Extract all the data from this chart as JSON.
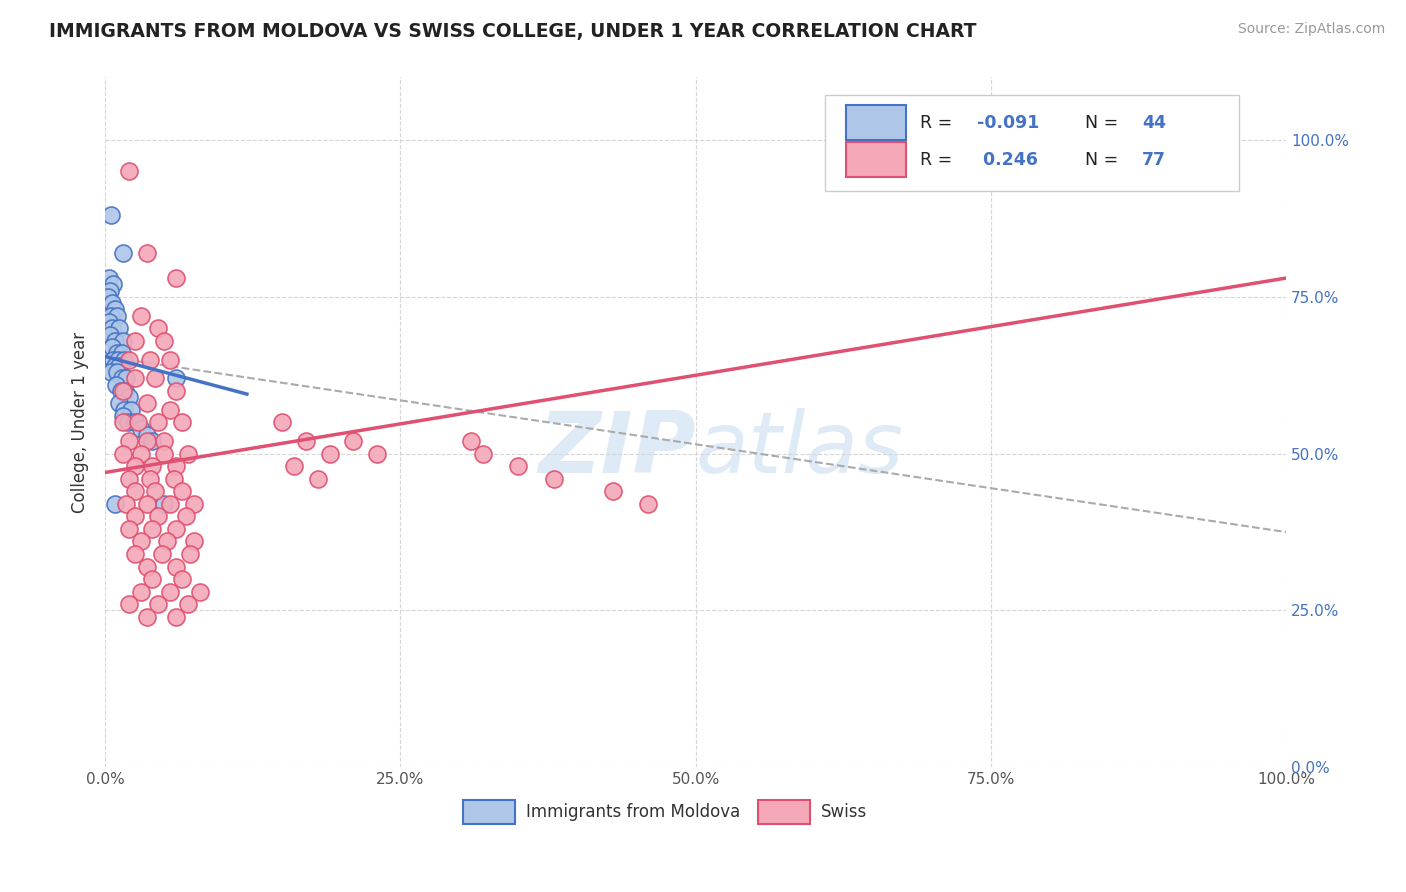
{
  "title": "IMMIGRANTS FROM MOLDOVA VS SWISS COLLEGE, UNDER 1 YEAR CORRELATION CHART",
  "source": "Source: ZipAtlas.com",
  "ylabel": "College, Under 1 year",
  "legend_entries": [
    "Immigrants from Moldova",
    "Swiss"
  ],
  "r_blue": -0.091,
  "r_pink": 0.246,
  "n_blue": 44,
  "n_pink": 77,
  "dot_color_blue": "#aec6e8",
  "dot_color_pink": "#f4a8b8",
  "line_color_blue": "#4472c4",
  "line_color_pink": "#e05070",
  "dash_color": "#aaaaaa",
  "watermark_color": "#c8ddf0",
  "right_axis_color": "#4472c4",
  "background_color": "#ffffff",
  "grid_color": "#cccccc",
  "xlim": [
    0.0,
    1.0
  ],
  "ylim": [
    0.0,
    1.1
  ],
  "yticks": [
    0.0,
    0.25,
    0.5,
    0.75,
    1.0
  ],
  "xticks": [
    0.0,
    0.25,
    0.5,
    0.75,
    1.0
  ],
  "ytick_labels_right": [
    "0.0%",
    "25.0%",
    "50.0%",
    "75.0%",
    "100.0%"
  ],
  "xtick_labels": [
    "0.0%",
    "25.0%",
    "50.0%",
    "75.0%",
    "100.0%"
  ],
  "blue_points": [
    [
      0.005,
      0.88
    ],
    [
      0.015,
      0.82
    ],
    [
      0.003,
      0.78
    ],
    [
      0.007,
      0.77
    ],
    [
      0.004,
      0.76
    ],
    [
      0.002,
      0.75
    ],
    [
      0.006,
      0.74
    ],
    [
      0.008,
      0.73
    ],
    [
      0.005,
      0.72
    ],
    [
      0.01,
      0.72
    ],
    [
      0.003,
      0.71
    ],
    [
      0.006,
      0.7
    ],
    [
      0.012,
      0.7
    ],
    [
      0.004,
      0.69
    ],
    [
      0.008,
      0.68
    ],
    [
      0.015,
      0.68
    ],
    [
      0.006,
      0.67
    ],
    [
      0.01,
      0.66
    ],
    [
      0.014,
      0.66
    ],
    [
      0.007,
      0.65
    ],
    [
      0.011,
      0.65
    ],
    [
      0.016,
      0.65
    ],
    [
      0.008,
      0.64
    ],
    [
      0.012,
      0.64
    ],
    [
      0.005,
      0.63
    ],
    [
      0.01,
      0.63
    ],
    [
      0.014,
      0.62
    ],
    [
      0.018,
      0.62
    ],
    [
      0.009,
      0.61
    ],
    [
      0.013,
      0.6
    ],
    [
      0.017,
      0.6
    ],
    [
      0.02,
      0.59
    ],
    [
      0.012,
      0.58
    ],
    [
      0.016,
      0.57
    ],
    [
      0.022,
      0.57
    ],
    [
      0.015,
      0.56
    ],
    [
      0.019,
      0.55
    ],
    [
      0.025,
      0.55
    ],
    [
      0.03,
      0.54
    ],
    [
      0.035,
      0.53
    ],
    [
      0.04,
      0.52
    ],
    [
      0.05,
      0.42
    ],
    [
      0.008,
      0.42
    ],
    [
      0.06,
      0.62
    ]
  ],
  "pink_points": [
    [
      0.02,
      0.95
    ],
    [
      0.035,
      0.82
    ],
    [
      0.06,
      0.78
    ],
    [
      0.03,
      0.72
    ],
    [
      0.045,
      0.7
    ],
    [
      0.025,
      0.68
    ],
    [
      0.05,
      0.68
    ],
    [
      0.02,
      0.65
    ],
    [
      0.038,
      0.65
    ],
    [
      0.055,
      0.65
    ],
    [
      0.025,
      0.62
    ],
    [
      0.042,
      0.62
    ],
    [
      0.06,
      0.6
    ],
    [
      0.015,
      0.6
    ],
    [
      0.035,
      0.58
    ],
    [
      0.055,
      0.57
    ],
    [
      0.015,
      0.55
    ],
    [
      0.028,
      0.55
    ],
    [
      0.045,
      0.55
    ],
    [
      0.065,
      0.55
    ],
    [
      0.02,
      0.52
    ],
    [
      0.035,
      0.52
    ],
    [
      0.05,
      0.52
    ],
    [
      0.015,
      0.5
    ],
    [
      0.03,
      0.5
    ],
    [
      0.05,
      0.5
    ],
    [
      0.07,
      0.5
    ],
    [
      0.025,
      0.48
    ],
    [
      0.04,
      0.48
    ],
    [
      0.06,
      0.48
    ],
    [
      0.02,
      0.46
    ],
    [
      0.038,
      0.46
    ],
    [
      0.058,
      0.46
    ],
    [
      0.025,
      0.44
    ],
    [
      0.042,
      0.44
    ],
    [
      0.065,
      0.44
    ],
    [
      0.018,
      0.42
    ],
    [
      0.035,
      0.42
    ],
    [
      0.055,
      0.42
    ],
    [
      0.075,
      0.42
    ],
    [
      0.025,
      0.4
    ],
    [
      0.045,
      0.4
    ],
    [
      0.068,
      0.4
    ],
    [
      0.02,
      0.38
    ],
    [
      0.04,
      0.38
    ],
    [
      0.06,
      0.38
    ],
    [
      0.03,
      0.36
    ],
    [
      0.052,
      0.36
    ],
    [
      0.075,
      0.36
    ],
    [
      0.025,
      0.34
    ],
    [
      0.048,
      0.34
    ],
    [
      0.072,
      0.34
    ],
    [
      0.035,
      0.32
    ],
    [
      0.06,
      0.32
    ],
    [
      0.04,
      0.3
    ],
    [
      0.065,
      0.3
    ],
    [
      0.03,
      0.28
    ],
    [
      0.055,
      0.28
    ],
    [
      0.08,
      0.28
    ],
    [
      0.02,
      0.26
    ],
    [
      0.045,
      0.26
    ],
    [
      0.07,
      0.26
    ],
    [
      0.035,
      0.24
    ],
    [
      0.06,
      0.24
    ],
    [
      0.15,
      0.55
    ],
    [
      0.17,
      0.52
    ],
    [
      0.19,
      0.5
    ],
    [
      0.16,
      0.48
    ],
    [
      0.18,
      0.46
    ],
    [
      0.21,
      0.52
    ],
    [
      0.23,
      0.5
    ],
    [
      0.31,
      0.52
    ],
    [
      0.32,
      0.5
    ],
    [
      0.35,
      0.48
    ],
    [
      0.38,
      0.46
    ],
    [
      0.43,
      0.44
    ],
    [
      0.46,
      0.42
    ]
  ],
  "blue_line_x": [
    0.0,
    0.12
  ],
  "blue_line_y": [
    0.655,
    0.595
  ],
  "pink_line_x": [
    0.0,
    1.0
  ],
  "pink_line_y": [
    0.47,
    0.78
  ],
  "dash_line_x": [
    0.0,
    1.0
  ],
  "dash_line_y": [
    0.655,
    0.375
  ]
}
